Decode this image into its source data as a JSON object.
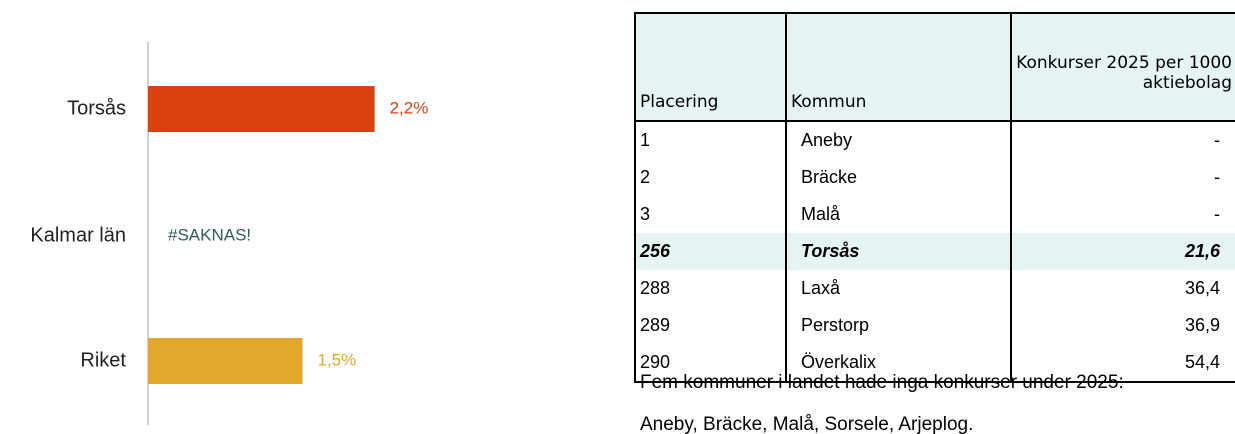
{
  "chart_data": {
    "type": "hbar",
    "categories": [
      "Torsås",
      "Kalmar län",
      "Riket"
    ],
    "values": [
      2.2,
      null,
      1.5
    ],
    "value_labels": [
      "2,2%",
      "#SAKNAS!",
      "1,5%"
    ],
    "colors": [
      "#d9410f",
      null,
      "#e3a82b"
    ],
    "xlim": [
      0,
      3
    ]
  },
  "table": {
    "header": [
      "Placering",
      "Kommun",
      "Konkurser 2025 per 1000 aktiebolag"
    ],
    "rows": [
      [
        "1",
        "Aneby",
        "-"
      ],
      [
        "2",
        "Bräcke",
        "-"
      ],
      [
        "3",
        "Malå",
        "-"
      ],
      [
        "256",
        "Torsås",
        "21,6"
      ],
      [
        "288",
        "Laxå",
        "36,4"
      ],
      [
        "289",
        "Perstorp",
        "36,9"
      ],
      [
        "290",
        "Överkalix",
        "54,4"
      ]
    ],
    "highlight_row": 3
  },
  "notes": [
    "Fem kommuner i landet hade inga konkurser under 2025:",
    "Aneby, Bräcke, Malå, Sorsele, Arjeplog."
  ]
}
